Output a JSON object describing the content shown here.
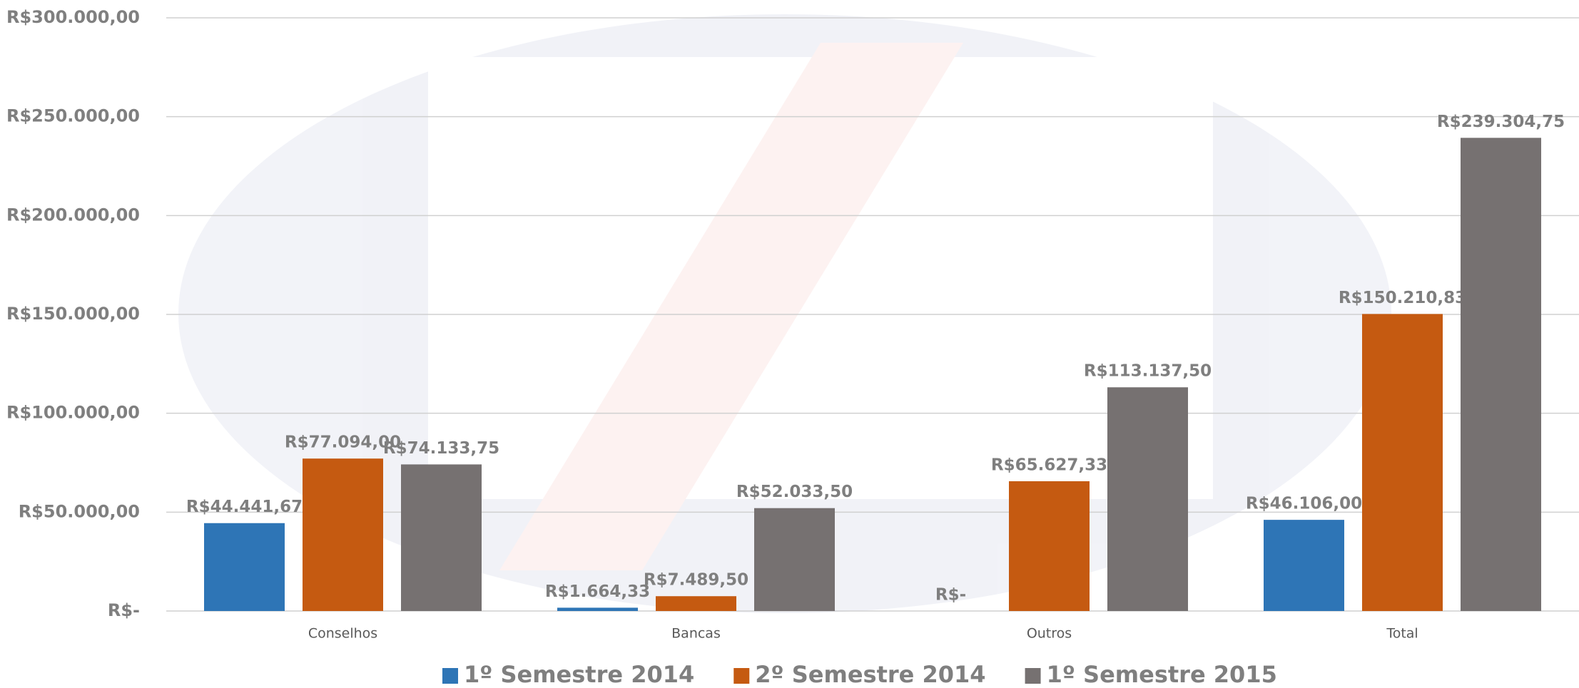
{
  "chart_data": {
    "type": "bar",
    "categories": [
      "Conselhos",
      "Bancas",
      "Outros",
      "Total"
    ],
    "series": [
      {
        "name": "1º Semestre 2014",
        "color": "#2e75b6",
        "values": [
          44441.67,
          1664.33,
          0,
          46106.0
        ],
        "value_labels": [
          "R$44.441,67",
          "R$1.664,33",
          "R$-",
          "R$46.106,00"
        ]
      },
      {
        "name": "2º Semestre 2014",
        "color": "#c55a11",
        "values": [
          77094.0,
          7489.5,
          65627.33,
          150210.83
        ],
        "value_labels": [
          "R$77.094,00",
          "R$7.489,50",
          "R$65.627,33",
          "R$150.210,83"
        ]
      },
      {
        "name": "1º Semestre 2015",
        "color": "#767171",
        "values": [
          74133.75,
          52033.5,
          113137.5,
          239304.75
        ],
        "value_labels": [
          "R$74.133,75",
          "R$52.033,50",
          "R$113.137,50",
          "R$239.304,75"
        ]
      }
    ],
    "ylim": [
      0,
      300000
    ],
    "yticks": [
      {
        "value": 0,
        "label": "R$-"
      },
      {
        "value": 50000,
        "label": "R$50.000,00"
      },
      {
        "value": 100000,
        "label": "R$100.000,00"
      },
      {
        "value": 150000,
        "label": "R$150.000,00"
      },
      {
        "value": 200000,
        "label": "R$200.000,00"
      },
      {
        "value": 250000,
        "label": "R$250.000,00"
      },
      {
        "value": 300000,
        "label": "R$300.000,00"
      }
    ],
    "grid": true,
    "legend": "bottom"
  }
}
